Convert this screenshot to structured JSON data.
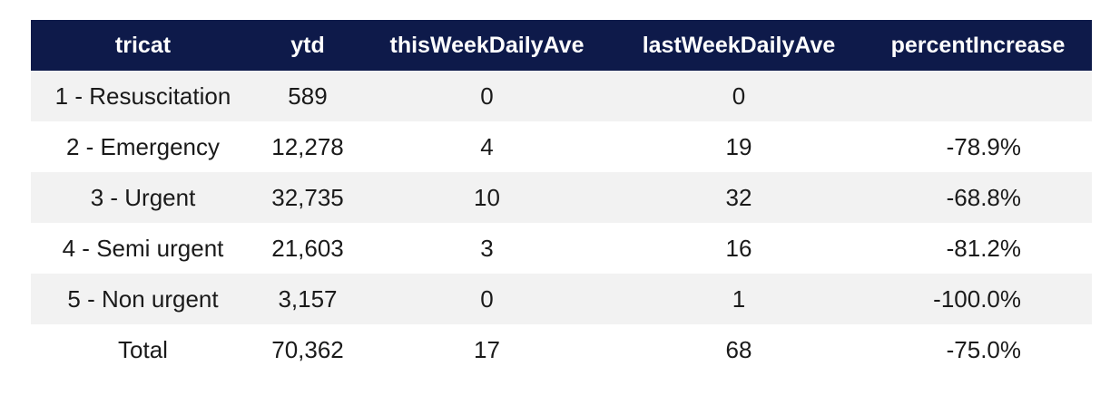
{
  "chart_data": {
    "type": "table",
    "columns": [
      "tricat",
      "ytd",
      "thisWeekDailyAve",
      "lastWeekDailyAve",
      "percentIncrease"
    ],
    "rows": [
      [
        "1 - Resuscitation",
        "589",
        "0",
        "0",
        ""
      ],
      [
        "2 - Emergency",
        "12,278",
        "4",
        "19",
        "-78.9%"
      ],
      [
        "3 - Urgent",
        "32,735",
        "10",
        "32",
        "-68.8%"
      ],
      [
        "4 - Semi urgent",
        "21,603",
        "3",
        "16",
        "-81.2%"
      ],
      [
        "5 - Non urgent",
        "3,157",
        "0",
        "1",
        "-100.0%"
      ],
      [
        "Total",
        "70,362",
        "17",
        "68",
        "-75.0%"
      ]
    ]
  },
  "colors": {
    "header_bg": "#0e1a4a",
    "header_text": "#ffffff",
    "row_stripe": "#f2f2f2",
    "row_plain": "#ffffff",
    "cell_text": "#1a1a1a"
  }
}
